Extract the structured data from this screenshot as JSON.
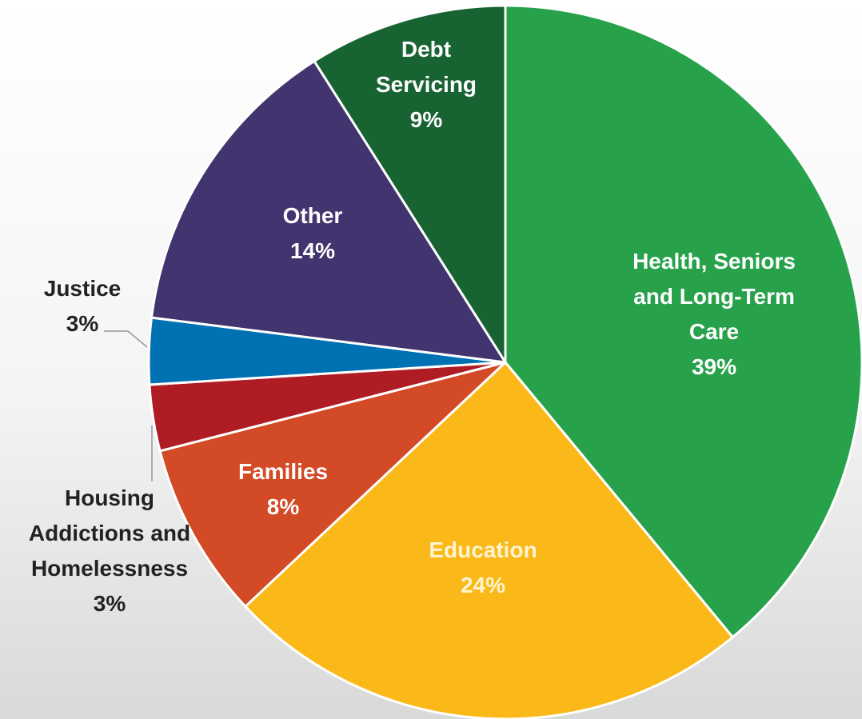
{
  "chart_data": {
    "type": "pie",
    "categories": [
      "Health, Seniors and Long-Term Care",
      "Education",
      "Families",
      "Housing Addictions and Homelessness",
      "Justice",
      "Other",
      "Debt Servicing"
    ],
    "values": [
      39,
      24,
      8,
      3,
      3,
      14,
      9
    ],
    "value_labels": [
      "39%",
      "24%",
      "8%",
      "3%",
      "3%",
      "14%",
      "9%"
    ],
    "colors": [
      "#27a24b",
      "#fbb919",
      "#d24a26",
      "#b01c23",
      "#0071b2",
      "#42346e",
      "#176332"
    ]
  }
}
